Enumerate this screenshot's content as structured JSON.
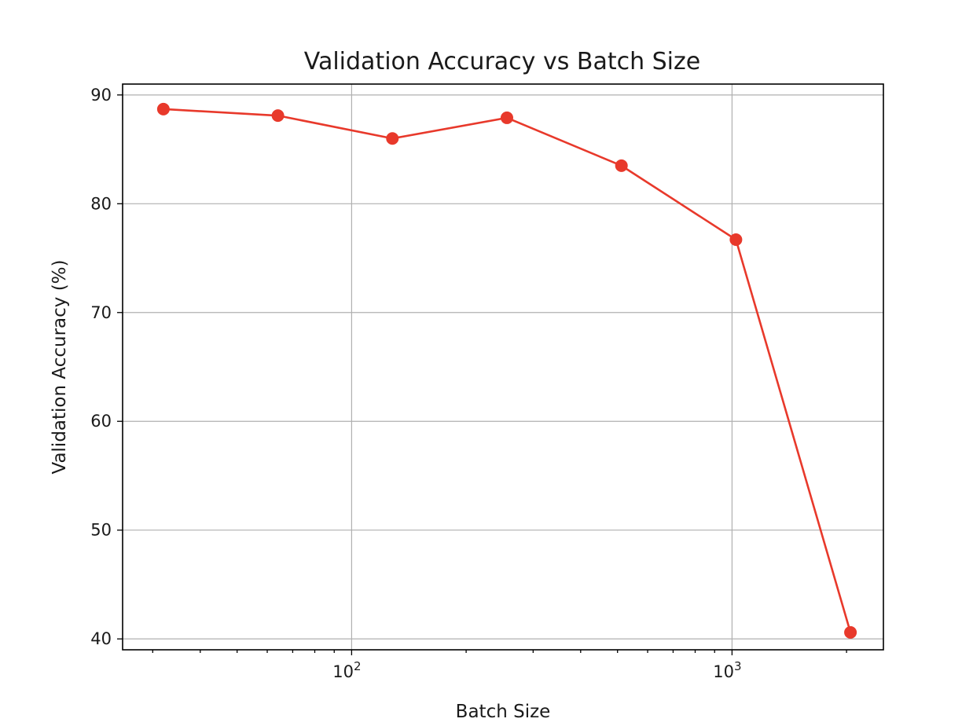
{
  "chart_data": {
    "type": "line",
    "title": "Validation Accuracy vs Batch Size",
    "xlabel": "Batch Size",
    "ylabel": "Validation Accuracy (%)",
    "xscale": "log",
    "xlim": [
      25,
      2500
    ],
    "ylim": [
      39,
      91
    ],
    "xticks": [
      {
        "value": 100,
        "base": "10",
        "exp": "2"
      },
      {
        "value": 1000,
        "base": "10",
        "exp": "3"
      }
    ],
    "yticks": [
      40,
      50,
      60,
      70,
      80,
      90
    ],
    "grid": true,
    "line_color": "#e8392b",
    "series": [
      {
        "x": [
          32,
          64,
          128,
          256,
          512,
          1024,
          2048
        ],
        "y": [
          88.7,
          88.1,
          86.0,
          87.9,
          83.5,
          76.7,
          40.6
        ]
      }
    ]
  }
}
